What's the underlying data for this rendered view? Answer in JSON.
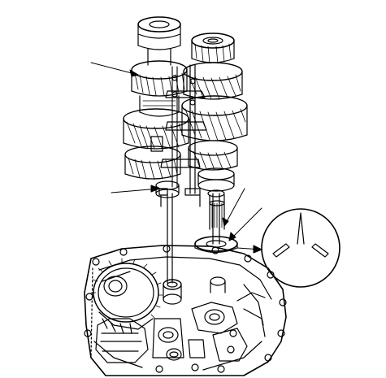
{
  "diagram": {
    "style": "black line-art technical illustration on white",
    "line_color": "#000000",
    "background": "#ffffff",
    "callouts": [
      {
        "name": "callout-upper-gear-stack"
      },
      {
        "name": "callout-shift-rod"
      },
      {
        "name": "callout-shaft-splines"
      },
      {
        "name": "callout-thrust-washer"
      }
    ],
    "detail_inset": {
      "name": "detail-circle-washer-tabs"
    }
  }
}
